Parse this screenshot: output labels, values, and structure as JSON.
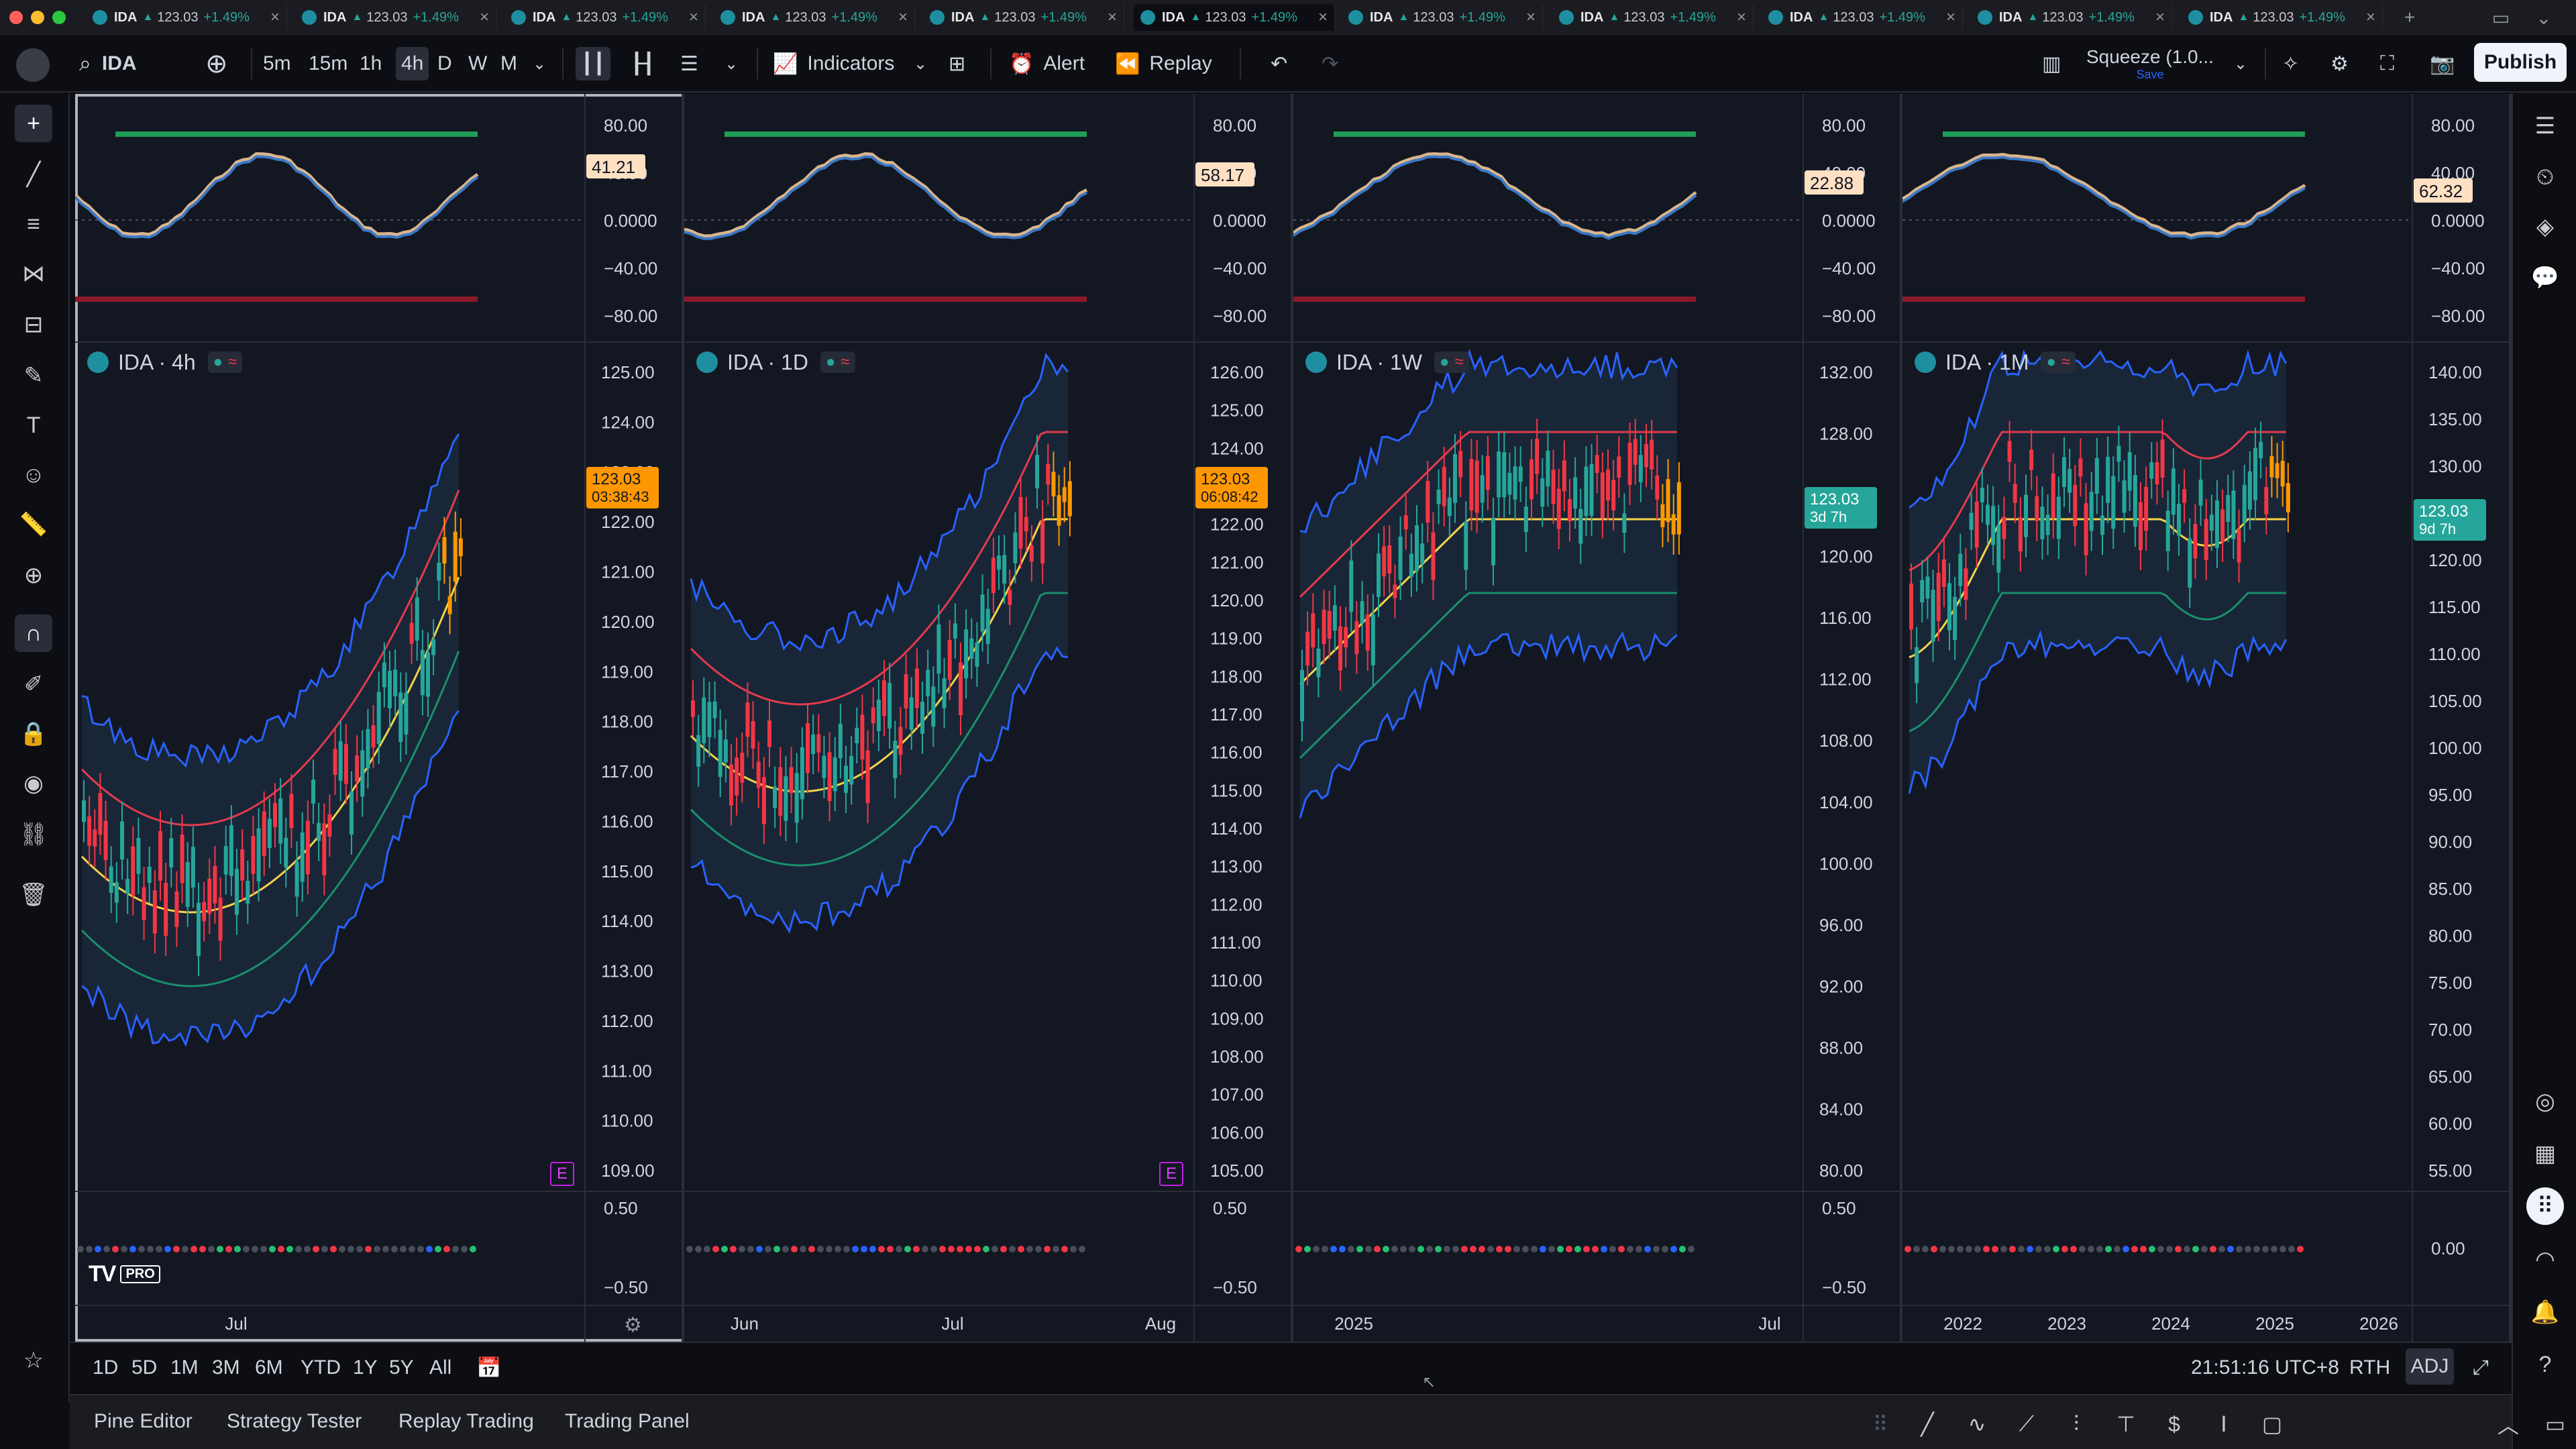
{
  "tabs": [
    {
      "symbol": "IDA",
      "price": "123.03",
      "change": "+1.49%"
    },
    {
      "symbol": "IDA",
      "price": "123.03",
      "change": "+1.49%"
    },
    {
      "symbol": "IDA",
      "price": "123.03",
      "change": "+1.49%"
    },
    {
      "symbol": "IDA",
      "price": "123.03",
      "change": "+1.49%"
    },
    {
      "symbol": "IDA",
      "price": "123.03",
      "change": "+1.49%"
    },
    {
      "symbol": "IDA",
      "price": "123.03",
      "change": "+1.49%"
    },
    {
      "symbol": "IDA",
      "price": "123.03",
      "change": "+1.49%"
    },
    {
      "symbol": "IDA",
      "price": "123.03",
      "change": "+1.49%"
    },
    {
      "symbol": "IDA",
      "price": "123.03",
      "change": "+1.49%"
    },
    {
      "symbol": "IDA",
      "price": "123.03",
      "change": "+1.49%"
    },
    {
      "symbol": "IDA",
      "price": "123.03",
      "change": "+1.49%"
    }
  ],
  "toolbar": {
    "symbol": "IDA",
    "intervals": [
      "5m",
      "15m",
      "1h",
      "4h",
      "D",
      "W",
      "M"
    ],
    "selected_interval": "4h",
    "indicators": "Indicators",
    "alert": "Alert",
    "replay": "Replay",
    "layout_name": "Squeeze (1.0...",
    "layout_sub": "Save",
    "publish": "Publish"
  },
  "charts": [
    {
      "legend": "IDA · 4h",
      "osc_ticks": [
        "80.00",
        "40.00",
        "0.0000",
        "−40.00",
        "−80.00"
      ],
      "osc_value": "41.21",
      "price_ticks": [
        "125.00",
        "124.00",
        "123.00",
        "122.00",
        "121.00",
        "120.00",
        "119.00",
        "118.00",
        "117.00",
        "116.00",
        "115.00",
        "114.00",
        "113.00",
        "112.00",
        "111.00",
        "110.00",
        "109.00"
      ],
      "price_label": "123.03",
      "countdown": "03:38:43",
      "mom_ticks": [
        "0.50",
        "−0.50"
      ],
      "time_labels": [
        "Jul"
      ],
      "ebadge": "E",
      "tvlogo": "TV",
      "tvpro": "PRO"
    },
    {
      "legend": "IDA · 1D",
      "osc_ticks": [
        "80.00",
        "40.00",
        "0.0000",
        "−40.00",
        "−80.00"
      ],
      "osc_value": "58.17",
      "price_ticks": [
        "126.00",
        "125.00",
        "124.00",
        "123.00",
        "122.00",
        "121.00",
        "120.00",
        "119.00",
        "118.00",
        "117.00",
        "116.00",
        "115.00",
        "114.00",
        "113.00",
        "112.00",
        "111.00",
        "110.00",
        "109.00",
        "108.00",
        "107.00",
        "106.00",
        "105.00"
      ],
      "price_label": "123.03",
      "countdown": "06:08:42",
      "mom_ticks": [
        "0.50",
        "−0.50"
      ],
      "time_labels": [
        "Jun",
        "Jul",
        "Aug"
      ],
      "ebadge": "E"
    },
    {
      "legend": "IDA · 1W",
      "osc_ticks": [
        "80.00",
        "40.00",
        "0.0000",
        "−40.00",
        "−80.00"
      ],
      "osc_value": "22.88",
      "price_ticks": [
        "132.00",
        "128.00",
        "124.00",
        "120.00",
        "116.00",
        "112.00",
        "108.00",
        "104.00",
        "100.00",
        "96.00",
        "92.00",
        "88.00",
        "84.00",
        "80.00"
      ],
      "price_label": "123.03",
      "countdown": "3d 7h",
      "mom_ticks": [
        "0.50",
        "−0.50"
      ],
      "time_labels": [
        "2025",
        "Jul"
      ]
    },
    {
      "legend": "IDA · 1M",
      "osc_ticks": [
        "80.00",
        "40.00",
        "0.0000",
        "−40.00",
        "−80.00"
      ],
      "osc_value": "62.32",
      "price_ticks": [
        "140.00",
        "135.00",
        "130.00",
        "125.00",
        "120.00",
        "115.00",
        "110.00",
        "105.00",
        "100.00",
        "95.00",
        "90.00",
        "85.00",
        "80.00",
        "75.00",
        "70.00",
        "65.00",
        "60.00",
        "55.00"
      ],
      "price_label": "123.03",
      "countdown": "9d 7h",
      "mom_ticks": [
        "0.00"
      ],
      "time_labels": [
        "2022",
        "2023",
        "2024",
        "2025",
        "2026"
      ]
    }
  ],
  "ranges": [
    "1D",
    "5D",
    "1M",
    "3M",
    "6M",
    "YTD",
    "1Y",
    "5Y",
    "All"
  ],
  "status": {
    "clock": "21:51:16 UTC+8",
    "session": "RTH",
    "adj": "ADJ"
  },
  "panels": [
    "Pine Editor",
    "Strategy Tester",
    "Replay Trading",
    "Trading Panel"
  ],
  "colors": {
    "up": "#26a69a",
    "down": "#f23645",
    "highlight": "#ff9800",
    "accent": "#2962ff"
  }
}
